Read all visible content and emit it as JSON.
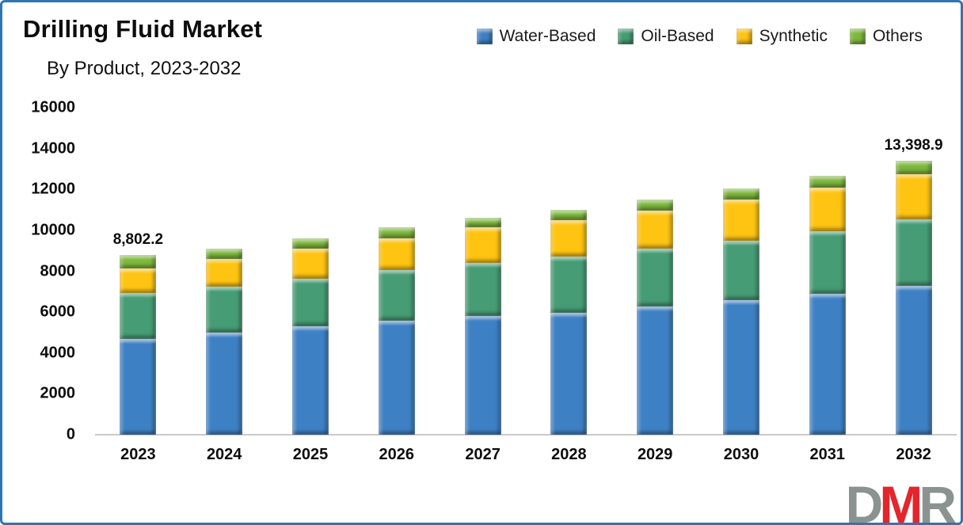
{
  "header": {
    "title": "Drilling Fluid Market",
    "subtitle": "By Product, 2023-2032"
  },
  "chart_data": {
    "type": "bar",
    "stacked": true,
    "title": "Drilling Fluid Market",
    "subtitle": "By Product, 2023-2032",
    "categories": [
      "2023",
      "2024",
      "2025",
      "2026",
      "2027",
      "2028",
      "2029",
      "2030",
      "2031",
      "2032"
    ],
    "series": [
      {
        "name": "Water-Based",
        "color": "#3e80c4",
        "values": [
          4700,
          5000,
          5300,
          5570,
          5830,
          5980,
          6260,
          6580,
          6900,
          7280
        ]
      },
      {
        "name": "Oil-Based",
        "color": "#469c74",
        "values": [
          2225,
          2230,
          2340,
          2480,
          2590,
          2750,
          2840,
          2930,
          3060,
          3260
        ]
      },
      {
        "name": "Synthetic",
        "color": "#ffc412",
        "values": [
          1225,
          1380,
          1470,
          1560,
          1720,
          1760,
          1880,
          2010,
          2110,
          2200
        ]
      },
      {
        "name": "Others",
        "color": "#7db83c",
        "values": [
          652.2,
          490,
          510,
          550,
          490,
          510,
          520,
          530,
          580,
          658.9
        ]
      }
    ],
    "totals": [
      8802.2,
      9100,
      9620,
      10160,
      10630,
      11000,
      11500,
      12050,
      12650,
      13398.9
    ],
    "bar_labels": [
      {
        "index": 0,
        "text": "8,802.2"
      },
      {
        "index": 9,
        "text": "13,398.9"
      }
    ],
    "ylim": [
      0,
      16000
    ],
    "ytick_step": 2000,
    "yticks": [
      "0",
      "2000",
      "4000",
      "6000",
      "8000",
      "10000",
      "12000",
      "14000",
      "16000"
    ],
    "grid": false,
    "legend_position": "top-right"
  },
  "logo": {
    "letters": [
      {
        "char": "D",
        "color": "#8a938f"
      },
      {
        "char": "M",
        "color": "#e4252b"
      },
      {
        "char": "R",
        "color": "#8a938f"
      }
    ]
  },
  "colors": {
    "frame_border": "#2e75b6",
    "baseline": "#c9c9c9",
    "text": "#0d0d0d"
  }
}
